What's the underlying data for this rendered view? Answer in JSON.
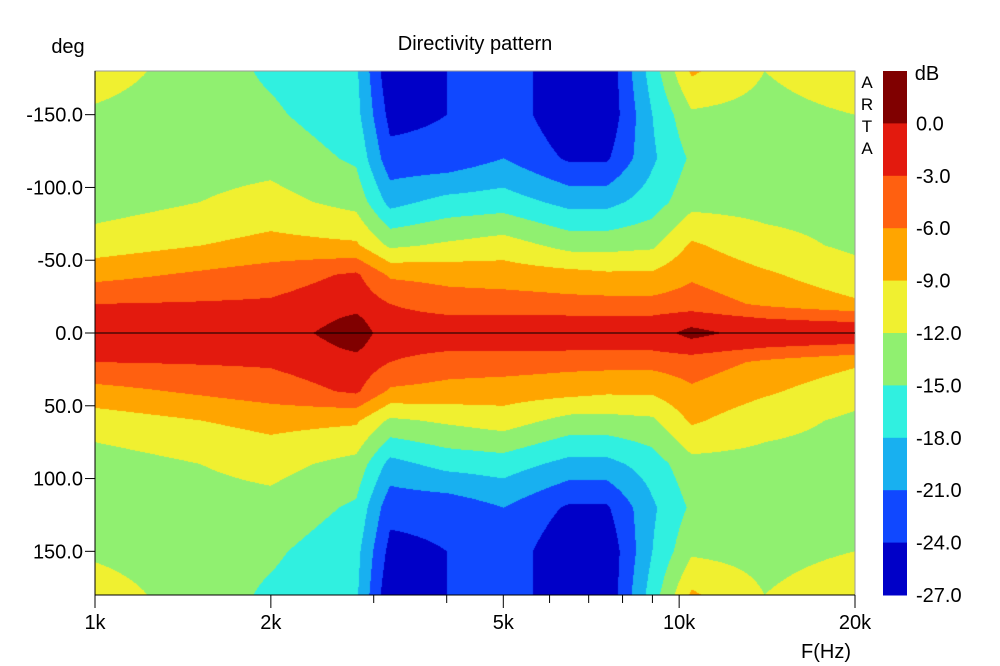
{
  "chart_data": {
    "type": "heatmap",
    "title": "Directivity pattern",
    "xlabel": "F(Hz)",
    "ylabel": "deg",
    "x_scale": "log",
    "xlim": [
      1000,
      20000
    ],
    "ylim": [
      -180,
      180
    ],
    "x_ticks": [
      {
        "value": 1000,
        "label": "1k"
      },
      {
        "value": 2000,
        "label": "2k"
      },
      {
        "value": 5000,
        "label": "5k"
      },
      {
        "value": 10000,
        "label": "10k"
      },
      {
        "value": 20000,
        "label": "20k"
      }
    ],
    "x_minor_ticks": [
      3000,
      4000,
      6000,
      7000,
      8000,
      9000
    ],
    "y_ticks": [
      {
        "value": -150,
        "label": "-150.0"
      },
      {
        "value": -100,
        "label": "-100.0"
      },
      {
        "value": -50,
        "label": "-50.0"
      },
      {
        "value": 0,
        "label": "0.0"
      },
      {
        "value": 50,
        "label": "50.0"
      },
      {
        "value": 100,
        "label": "100.0"
      },
      {
        "value": 150,
        "label": "150.0"
      }
    ],
    "colorbar": {
      "unit": "dB",
      "levels": [
        {
          "label": "0.0",
          "color": "#800000"
        },
        {
          "label": "-3.0",
          "color": "#e31a0e"
        },
        {
          "label": "-6.0",
          "color": "#ff6010"
        },
        {
          "label": "-9.0",
          "color": "#ffa500"
        },
        {
          "label": "-12.0",
          "color": "#f0f030"
        },
        {
          "label": "-15.0",
          "color": "#90f070"
        },
        {
          "label": "-18.0",
          "color": "#30f0e0"
        },
        {
          "label": "-21.0",
          "color": "#18b0f0"
        },
        {
          "label": "-24.0",
          "color": "#1048ff"
        },
        {
          "label": "-27.0",
          "color": "#0000c8"
        }
      ]
    },
    "profile_freqs": [
      1000,
      2000,
      2800,
      3200,
      4000,
      5000,
      6500,
      7500,
      9000,
      10500,
      14000,
      20000
    ],
    "profile_nodes": [
      0,
      10,
      20,
      40,
      60,
      90,
      120,
      150,
      180
    ],
    "profiles_db": [
      [
        -1.5,
        -2.0,
        -3.0,
        -7.0,
        -10.5,
        -13.5,
        -13.5,
        -12.5,
        -10.5
      ],
      [
        -1.5,
        -2.0,
        -2.6,
        -4.5,
        -8.0,
        -11.0,
        -13.0,
        -14.5,
        -15.5
      ],
      [
        1.5,
        0.5,
        -1.0,
        -2.5,
        -8.5,
        -13.0,
        -15.5,
        -17.0,
        -17.5
      ],
      [
        -1.5,
        -2.0,
        -3.0,
        -6.5,
        -12.5,
        -19.0,
        -23.0,
        -25.0,
        -26.5
      ],
      [
        -1.5,
        -2.5,
        -4.5,
        -7.0,
        -11.5,
        -17.0,
        -23.0,
        -24.0,
        -24.0
      ],
      [
        -1.5,
        -2.5,
        -4.5,
        -7.5,
        -10.5,
        -16.5,
        -21.0,
        -22.0,
        -22.0
      ],
      [
        -1.5,
        -2.5,
        -5.0,
        -8.0,
        -13.0,
        -19.0,
        -24.5,
        -26.5,
        -26.5
      ],
      [
        -1.5,
        -2.5,
        -5.0,
        -8.5,
        -13.0,
        -19.0,
        -24.5,
        -26.5,
        -26.5
      ],
      [
        -1.5,
        -2.5,
        -5.0,
        -8.5,
        -12.5,
        -16.5,
        -18.5,
        -18.0,
        -16.5
      ],
      [
        1.0,
        -1.5,
        -4.5,
        -6.5,
        -8.5,
        -13.0,
        -14.5,
        -12.5,
        -8.5
      ],
      [
        -1.5,
        -3.0,
        -6.5,
        -8.5,
        -11.0,
        -13.0,
        -14.0,
        -13.0,
        -12.0
      ],
      [
        -1.5,
        -3.5,
        -8.5,
        -11.0,
        -12.5,
        -13.0,
        -14.0,
        -12.0,
        -10.0
      ]
    ],
    "watermark": [
      "A",
      "R",
      "T",
      "A"
    ]
  }
}
